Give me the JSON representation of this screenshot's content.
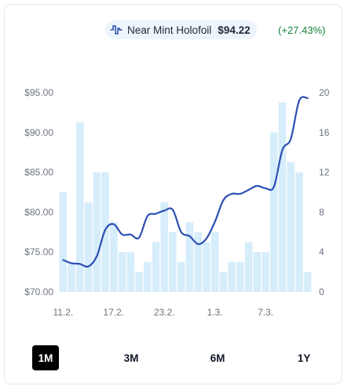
{
  "legend": {
    "icon": "sparkline-icon",
    "label": "Near Mint Holofoil",
    "price": "$94.22",
    "change": "(+27.43%)",
    "color": "#2c4fb3",
    "change_color": "#15803d"
  },
  "chart_data": {
    "type": "bar+line",
    "x_tick_labels": [
      "11.2.",
      "17.2.",
      "23.2.",
      "1.3.",
      "7.3."
    ],
    "y_left": {
      "ticks": [
        "$95.00",
        "$90.00",
        "$85.00",
        "$80.00",
        "$75.00",
        "$70.00"
      ],
      "range": [
        70,
        95
      ]
    },
    "y_right": {
      "ticks": [
        "20",
        "16",
        "12",
        "8",
        "4",
        "0"
      ],
      "range": [
        0,
        20
      ]
    },
    "bars": {
      "color": "#d6edfb",
      "values": [
        10,
        3,
        17,
        9,
        12,
        12,
        7,
        4,
        4,
        2,
        3,
        5,
        9,
        6,
        3,
        7,
        6,
        5,
        6,
        2,
        3,
        3,
        5,
        4,
        4,
        16,
        19,
        13,
        12,
        2
      ]
    },
    "line": {
      "color": "#2c4fb3",
      "values": [
        74.0,
        73.6,
        73.5,
        73.2,
        74.5,
        77.8,
        78.5,
        77.2,
        77.2,
        76.8,
        79.5,
        79.8,
        80.2,
        80.3,
        77.5,
        77.0,
        76.0,
        76.7,
        78.8,
        81.5,
        82.3,
        82.3,
        82.8,
        83.3,
        83.0,
        83.2,
        87.8,
        89.2,
        94.0,
        94.3
      ]
    },
    "grid": false
  },
  "range_selector": {
    "options": [
      "1M",
      "3M",
      "6M",
      "1Y"
    ],
    "selected": "1M"
  }
}
